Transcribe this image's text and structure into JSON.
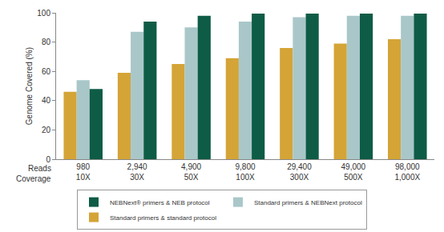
{
  "chart_data": {
    "type": "bar",
    "y_label": "Genome Covered (%)",
    "row_labels": [
      "Reads",
      "Coverage"
    ],
    "categories": [
      "980",
      "2,940",
      "4,900",
      "9,800",
      "29,400",
      "49,000",
      "98,000"
    ],
    "categories_2": [
      "10X",
      "30X",
      "50X",
      "100X",
      "300X",
      "500X",
      "1,000X"
    ],
    "series": [
      {
        "name": "Standard primers & standard protocol",
        "color": "#d4a437",
        "values": [
          46,
          59,
          65,
          69,
          76,
          79,
          82
        ]
      },
      {
        "name": "Standard primers & NEBNext protocol",
        "color": "#a9c7c9",
        "values": [
          54,
          87,
          90,
          94,
          97,
          98,
          98
        ]
      },
      {
        "name": "NEBNext® primers & NEB protocol",
        "color": "#0e5c46",
        "values": [
          48,
          94,
          98,
          99.5,
          99.5,
          99.5,
          99.5
        ]
      }
    ],
    "ylim": [
      0,
      100
    ],
    "yticks": [
      0,
      20,
      40,
      60,
      80,
      100
    ],
    "grid": false,
    "legend": "bottom"
  }
}
